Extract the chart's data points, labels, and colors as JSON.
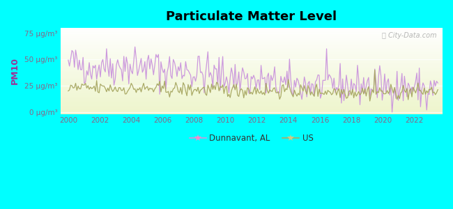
{
  "title": "Particulate Matter Level",
  "ylabel": "PM10",
  "background_color": "#00FFFF",
  "yticks": [
    0,
    25,
    50,
    75
  ],
  "ytick_labels": [
    "0 μg/m³",
    "25 μg/m³",
    "50 μg/m³",
    "75 μg/m³"
  ],
  "xmin": 1999.5,
  "xmax": 2023.8,
  "ymin": -2,
  "ymax": 80,
  "dunnavant_color": "#cc99dd",
  "us_color": "#aaaa66",
  "legend_dunnavant": "Dunnavant, AL",
  "legend_us": "US",
  "watermark": "ⓘ City-Data.com",
  "plot_bg_bottom": "#c8eeaa",
  "plot_bg_top": "#eefcf0",
  "title_fontsize": 13,
  "ylabel_color": "#993399",
  "tick_label_color": "#886688"
}
